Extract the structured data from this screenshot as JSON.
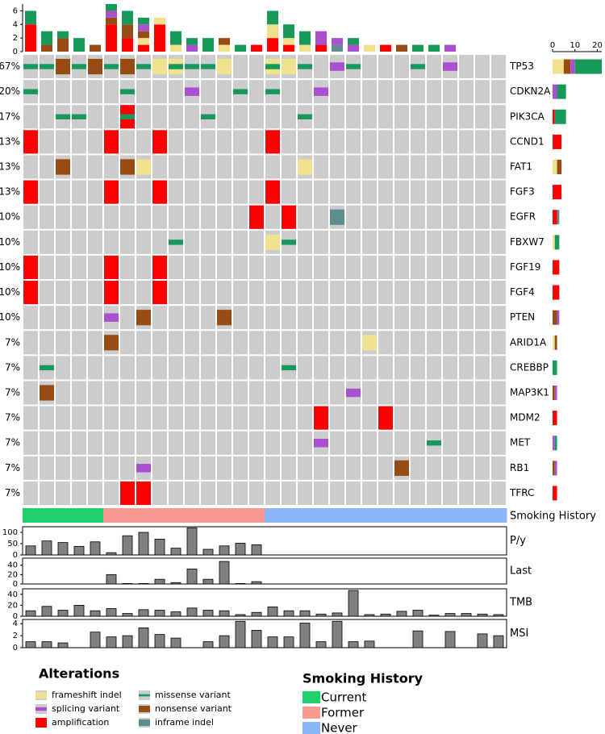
{
  "chart_data": {
    "type": "oncoprint",
    "sample_count_axis": {
      "ylim": [
        0,
        7
      ],
      "yticks": [
        0,
        2,
        4,
        6
      ]
    },
    "gene_count_axis": {
      "xlim": [
        0,
        22
      ],
      "xticks": [
        0,
        10,
        20
      ]
    },
    "alterations": {
      "title": "Alterations",
      "types": [
        {
          "name": "frameshift indel",
          "color": "#efe18e"
        },
        {
          "name": "splicing variant",
          "color": "#a94fcf"
        },
        {
          "name": "amplification",
          "color": "#ff0000"
        },
        {
          "name": "missense variant",
          "color": "#17995a"
        },
        {
          "name": "nonsense variant",
          "color": "#974c14"
        },
        {
          "name": "inframe indel",
          "color": "#5f8c8c"
        }
      ]
    },
    "genes": [
      {
        "name": "TP53",
        "percent_label": "67%",
        "counts": [
          5,
          2,
          0,
          12,
          3,
          0
        ],
        "alterations": [
          [
            0,
            "missense variant"
          ],
          [
            1,
            "missense variant"
          ],
          [
            2,
            "nonsense variant"
          ],
          [
            3,
            "missense variant"
          ],
          [
            4,
            "nonsense variant"
          ],
          [
            5,
            "missense variant"
          ],
          [
            6,
            "nonsense variant"
          ],
          [
            7,
            "missense variant"
          ],
          [
            8,
            "frameshift indel"
          ],
          [
            9,
            "frameshift indel"
          ],
          [
            9,
            "missense variant"
          ],
          [
            10,
            "missense variant"
          ],
          [
            11,
            "missense variant"
          ],
          [
            12,
            "frameshift indel"
          ],
          [
            15,
            "frameshift indel"
          ],
          [
            15,
            "missense variant"
          ],
          [
            16,
            "frameshift indel"
          ],
          [
            17,
            "missense variant"
          ],
          [
            19,
            "splicing variant"
          ],
          [
            20,
            "missense variant"
          ],
          [
            24,
            "missense variant"
          ],
          [
            26,
            "splicing variant"
          ]
        ]
      },
      {
        "name": "CDKN2A",
        "percent_label": "20%",
        "counts": [
          0,
          2,
          0,
          4,
          0,
          0
        ],
        "alterations": [
          [
            0,
            "missense variant"
          ],
          [
            6,
            "missense variant"
          ],
          [
            10,
            "splicing variant"
          ],
          [
            13,
            "missense variant"
          ],
          [
            15,
            "missense variant"
          ],
          [
            18,
            "splicing variant"
          ]
        ]
      },
      {
        "name": "PIK3CA",
        "percent_label": "17%",
        "counts": [
          0,
          0,
          1,
          5,
          0,
          0
        ],
        "alterations": [
          [
            2,
            "missense variant"
          ],
          [
            3,
            "missense variant"
          ],
          [
            6,
            "amplification"
          ],
          [
            6,
            "missense variant"
          ],
          [
            11,
            "missense variant"
          ],
          [
            17,
            "missense variant"
          ]
        ]
      },
      {
        "name": "CCND1",
        "percent_label": "13%",
        "counts": [
          0,
          0,
          4,
          0,
          0,
          0
        ],
        "alterations": [
          [
            0,
            "amplification"
          ],
          [
            5,
            "amplification"
          ],
          [
            8,
            "amplification"
          ],
          [
            15,
            "amplification"
          ]
        ]
      },
      {
        "name": "FAT1",
        "percent_label": "13%",
        "counts": [
          2,
          0,
          0,
          0,
          2,
          0
        ],
        "alterations": [
          [
            2,
            "nonsense variant"
          ],
          [
            6,
            "nonsense variant"
          ],
          [
            7,
            "frameshift indel"
          ],
          [
            17,
            "frameshift indel"
          ]
        ]
      },
      {
        "name": "FGF3",
        "percent_label": "13%",
        "counts": [
          0,
          0,
          4,
          0,
          0,
          0
        ],
        "alterations": [
          [
            0,
            "amplification"
          ],
          [
            5,
            "amplification"
          ],
          [
            8,
            "amplification"
          ],
          [
            15,
            "amplification"
          ]
        ]
      },
      {
        "name": "EGFR",
        "percent_label": "10%",
        "counts": [
          0,
          0,
          2,
          0,
          0,
          1
        ],
        "alterations": [
          [
            14,
            "amplification"
          ],
          [
            16,
            "amplification"
          ],
          [
            19,
            "inframe indel"
          ]
        ]
      },
      {
        "name": "FBXW7",
        "percent_label": "10%",
        "counts": [
          1,
          0,
          0,
          2,
          0,
          0
        ],
        "alterations": [
          [
            9,
            "missense variant"
          ],
          [
            15,
            "frameshift indel"
          ],
          [
            16,
            "missense variant"
          ]
        ]
      },
      {
        "name": "FGF19",
        "percent_label": "10%",
        "counts": [
          0,
          0,
          3,
          0,
          0,
          0
        ],
        "alterations": [
          [
            0,
            "amplification"
          ],
          [
            5,
            "amplification"
          ],
          [
            8,
            "amplification"
          ]
        ]
      },
      {
        "name": "FGF4",
        "percent_label": "10%",
        "counts": [
          0,
          0,
          3,
          0,
          0,
          0
        ],
        "alterations": [
          [
            0,
            "amplification"
          ],
          [
            5,
            "amplification"
          ],
          [
            8,
            "amplification"
          ]
        ]
      },
      {
        "name": "PTEN",
        "percent_label": "10%",
        "counts": [
          0,
          1,
          0,
          0,
          2,
          0
        ],
        "alterations": [
          [
            5,
            "splicing variant"
          ],
          [
            7,
            "nonsense variant"
          ],
          [
            12,
            "nonsense variant"
          ]
        ]
      },
      {
        "name": "ARID1A",
        "percent_label": "7%",
        "counts": [
          1,
          0,
          0,
          0,
          1,
          0
        ],
        "alterations": [
          [
            5,
            "nonsense variant"
          ],
          [
            21,
            "frameshift indel"
          ]
        ]
      },
      {
        "name": "CREBBP",
        "percent_label": "7%",
        "counts": [
          0,
          0,
          0,
          2,
          0,
          0
        ],
        "alterations": [
          [
            1,
            "missense variant"
          ],
          [
            16,
            "missense variant"
          ]
        ]
      },
      {
        "name": "MAP3K1",
        "percent_label": "7%",
        "counts": [
          0,
          1,
          0,
          0,
          1,
          0
        ],
        "alterations": [
          [
            1,
            "nonsense variant"
          ],
          [
            20,
            "splicing variant"
          ]
        ]
      },
      {
        "name": "MDM2",
        "percent_label": "7%",
        "counts": [
          0,
          0,
          2,
          0,
          0,
          0
        ],
        "alterations": [
          [
            18,
            "amplification"
          ],
          [
            22,
            "amplification"
          ]
        ]
      },
      {
        "name": "MET",
        "percent_label": "7%",
        "counts": [
          0,
          1,
          0,
          1,
          0,
          0
        ],
        "alterations": [
          [
            18,
            "splicing variant"
          ],
          [
            25,
            "missense variant"
          ]
        ]
      },
      {
        "name": "RB1",
        "percent_label": "7%",
        "counts": [
          0,
          1,
          0,
          0,
          1,
          0
        ],
        "alterations": [
          [
            7,
            "splicing variant"
          ],
          [
            23,
            "nonsense variant"
          ]
        ]
      },
      {
        "name": "TFRC",
        "percent_label": "7%",
        "counts": [
          0,
          0,
          2,
          0,
          0,
          0
        ],
        "alterations": [
          [
            6,
            "amplification"
          ],
          [
            7,
            "amplification"
          ]
        ]
      }
    ],
    "sample_counts": [
      [
        0,
        0,
        4,
        2,
        0,
        0
      ],
      [
        0,
        0,
        0,
        2,
        1,
        0
      ],
      [
        0,
        0,
        0,
        1,
        2,
        0
      ],
      [
        0,
        0,
        0,
        2,
        0,
        0
      ],
      [
        0,
        0,
        0,
        0,
        1,
        0
      ],
      [
        0,
        1,
        4,
        1,
        1,
        0
      ],
      [
        0,
        0,
        2,
        2,
        2,
        0
      ],
      [
        1,
        1,
        1,
        1,
        1,
        0
      ],
      [
        1,
        0,
        4,
        0,
        0,
        0
      ],
      [
        1,
        0,
        0,
        2,
        0,
        0
      ],
      [
        0,
        1,
        0,
        1,
        0,
        0
      ],
      [
        0,
        0,
        0,
        2,
        0,
        0
      ],
      [
        1,
        0,
        0,
        0,
        1,
        0
      ],
      [
        0,
        0,
        0,
        1,
        0,
        0
      ],
      [
        0,
        0,
        1,
        0,
        0,
        0
      ],
      [
        2,
        0,
        2,
        2,
        0,
        0
      ],
      [
        1,
        0,
        1,
        2,
        0,
        0
      ],
      [
        1,
        0,
        0,
        2,
        0,
        0
      ],
      [
        0,
        2,
        1,
        0,
        0,
        0
      ],
      [
        0,
        1,
        0,
        0,
        0,
        1
      ],
      [
        0,
        1,
        0,
        1,
        0,
        0
      ],
      [
        1,
        0,
        0,
        0,
        0,
        0
      ],
      [
        0,
        0,
        1,
        0,
        0,
        0
      ],
      [
        0,
        0,
        0,
        0,
        1,
        0
      ],
      [
        0,
        0,
        0,
        1,
        0,
        0
      ],
      [
        0,
        0,
        0,
        1,
        0,
        0
      ],
      [
        0,
        1,
        0,
        0,
        0,
        0
      ],
      [
        0,
        0,
        0,
        0,
        0,
        0
      ],
      [
        0,
        0,
        0,
        0,
        0,
        0
      ],
      [
        0,
        0,
        0,
        0,
        0,
        0
      ]
    ],
    "smoking_history": {
      "title": "Smoking History",
      "categories": [
        {
          "name": "Current",
          "color": "#1fd16a"
        },
        {
          "name": "Former",
          "color": "#f89a8f"
        },
        {
          "name": "Never",
          "color": "#8ab6f9"
        }
      ],
      "values": [
        "Current",
        "Current",
        "Current",
        "Current",
        "Current",
        "Former",
        "Former",
        "Former",
        "Former",
        "Former",
        "Former",
        "Former",
        "Former",
        "Former",
        "Former",
        "Never",
        "Never",
        "Never",
        "Never",
        "Never",
        "Never",
        "Never",
        "Never",
        "Never",
        "Never",
        "Never",
        "Never",
        "Never",
        "Never",
        "Never"
      ]
    },
    "tracks": [
      {
        "name": "P/y",
        "ylim": [
          0,
          125
        ],
        "yticks": [
          0,
          50,
          100
        ],
        "values": [
          40,
          62,
          55,
          38,
          58,
          10,
          85,
          100,
          70,
          30,
          120,
          25,
          40,
          52,
          45,
          null,
          null,
          null,
          null,
          null,
          null,
          null,
          null,
          null,
          null,
          null,
          null,
          null,
          null,
          null
        ]
      },
      {
        "name": "Last",
        "ylim": [
          0,
          55
        ],
        "yticks": [
          0,
          20,
          40
        ],
        "values": [
          null,
          null,
          null,
          null,
          null,
          20,
          1,
          1,
          10,
          3,
          32,
          10,
          48,
          1,
          5,
          null,
          null,
          null,
          null,
          null,
          null,
          null,
          null,
          null,
          null,
          null,
          null,
          null,
          null,
          null
        ]
      },
      {
        "name": "TMB",
        "ylim": [
          0,
          50
        ],
        "yticks": [
          0,
          20,
          40
        ],
        "values": [
          10,
          18,
          11,
          20,
          10,
          14,
          5,
          12,
          11,
          8,
          15,
          11,
          10,
          3,
          7,
          17,
          10,
          10,
          4,
          6,
          47,
          3,
          4,
          9,
          11,
          2,
          5,
          5,
          4,
          3
        ]
      },
      {
        "name": "MSI",
        "ylim": [
          0,
          4.7
        ],
        "yticks": [
          0,
          2,
          4
        ],
        "values": [
          1,
          1,
          0.8,
          0,
          2.6,
          1.8,
          2,
          3.3,
          2.2,
          1.6,
          0,
          1,
          2,
          4.4,
          2.9,
          1.8,
          1.8,
          4.1,
          1,
          4.4,
          1,
          1.1,
          0,
          0,
          2.8,
          0,
          2.7,
          0,
          2.3,
          2
        ]
      }
    ]
  }
}
